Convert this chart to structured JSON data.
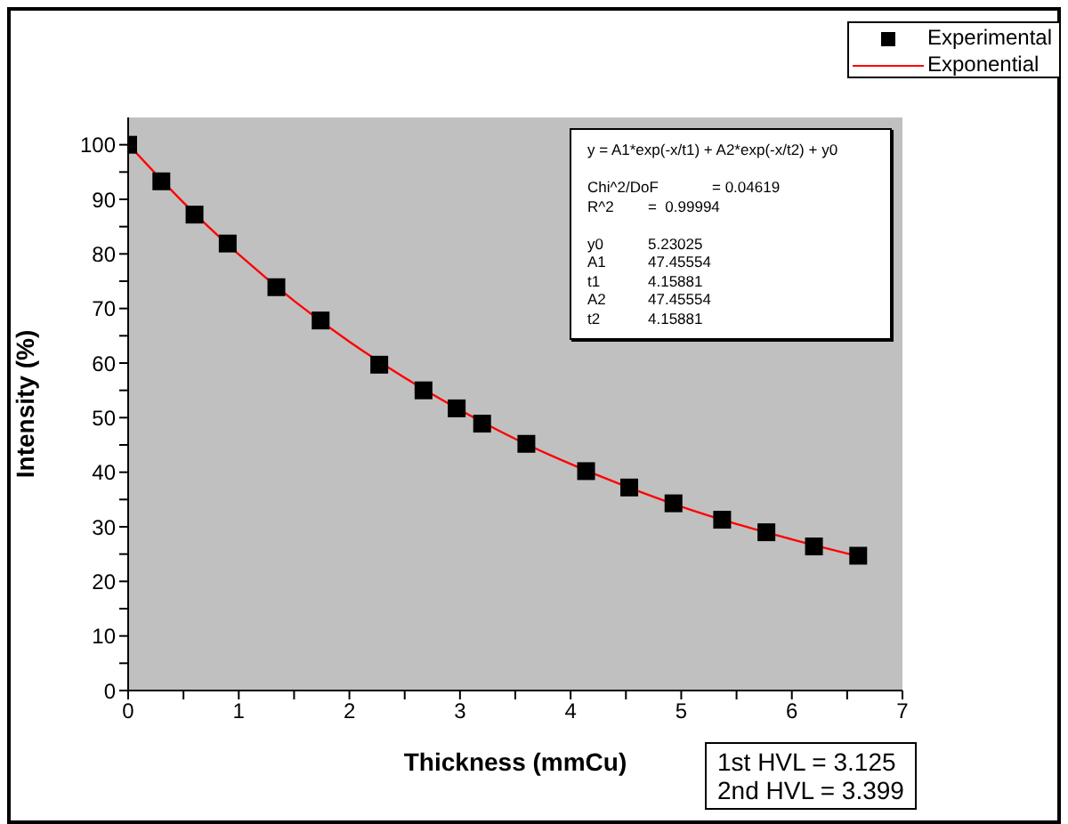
{
  "chart_data": {
    "type": "scatter",
    "xlabel": "Thickness (mmCu)",
    "ylabel": "Intensity (%)",
    "xlim": [
      0,
      7
    ],
    "xticks": [
      0,
      {
        "value": 0.5,
        "label": null
      },
      1,
      {
        "value": 1.5,
        "label": null
      },
      2,
      {
        "value": 2.5,
        "label": null
      },
      3,
      {
        "value": 3.5,
        "label": null
      },
      4,
      {
        "value": 4.5,
        "label": null
      },
      5,
      {
        "value": 5.5,
        "label": null
      },
      6,
      {
        "value": 6.5,
        "label": null
      },
      7
    ],
    "ylim": [
      0,
      105
    ],
    "yticks": [
      0,
      {
        "value": 5,
        "label": null
      },
      10,
      {
        "value": 15,
        "label": null
      },
      20,
      {
        "value": 25,
        "label": null
      },
      30,
      {
        "value": 35,
        "label": null
      },
      40,
      {
        "value": 45,
        "label": null
      },
      50,
      {
        "value": 55,
        "label": null
      },
      60,
      {
        "value": 65,
        "label": null
      },
      70,
      {
        "value": 75,
        "label": null
      },
      80,
      {
        "value": 85,
        "label": null
      },
      90,
      {
        "value": 95,
        "label": null
      },
      100
    ],
    "legend": "top right",
    "series": [
      {
        "name": "Experimental",
        "marker": "square",
        "color": "#000000",
        "x": [
          0,
          0.3,
          0.6,
          0.9,
          1.34,
          1.74,
          2.27,
          2.67,
          2.97,
          3.2,
          3.6,
          4.14,
          4.53,
          4.93,
          5.37,
          5.77,
          6.2,
          6.6
        ],
        "values": [
          100,
          93.3,
          87.2,
          81.9,
          73.9,
          67.8,
          59.7,
          55.0,
          51.7,
          48.9,
          45.2,
          40.2,
          37.2,
          34.3,
          31.3,
          29.0,
          26.4,
          24.7
        ]
      },
      {
        "name": "Exponential",
        "type": "line",
        "marker": "none",
        "color": "#ff0000",
        "x": [
          0,
          0.5,
          1,
          1.5,
          2,
          2.5,
          3,
          3.5,
          4,
          4.5,
          5,
          5.5,
          6,
          6.6
        ],
        "values": [
          100.1,
          89.4,
          79.9,
          71.4,
          63.9,
          57.3,
          51.4,
          46.1,
          41.5,
          37.4,
          33.7,
          30.5,
          27.7,
          24.6
        ]
      }
    ],
    "annotations": [
      "y = A1*exp(-x/t1) + A2*exp(-x/t2) + y0\n\nChi^2/DoF\t= 0.04619\nR^2\t=  0.99994\n\ny0\t5.23025\nA1\t47.45554\nt1\t4.15881\nA2\t47.45554\nt2\t4.15881",
      "1st HVL = 3.125\n2nd HVL = 3.399"
    ]
  }
}
